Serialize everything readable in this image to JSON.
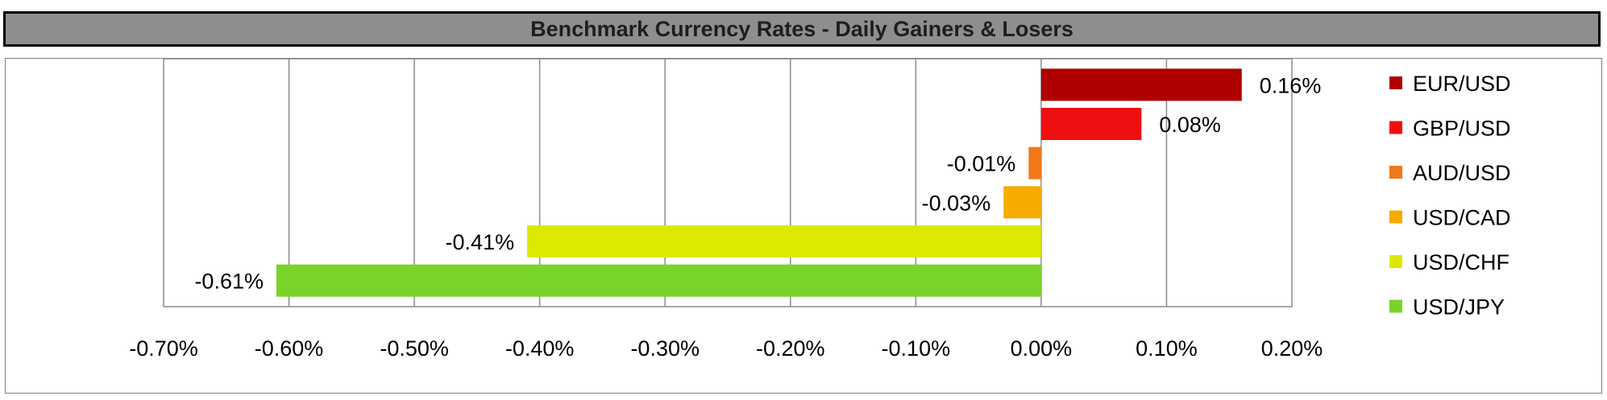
{
  "title": "Benchmark Currency Rates - Daily Gainers & Losers",
  "chart_data": {
    "type": "bar",
    "orientation": "horizontal",
    "title": "Benchmark Currency Rates - Daily Gainers & Losers",
    "xlabel": "",
    "ylabel": "",
    "xlim": [
      -0.7,
      0.2
    ],
    "x_ticks": [
      -0.7,
      -0.6,
      -0.5,
      -0.4,
      -0.3,
      -0.2,
      -0.1,
      0.0,
      0.1,
      0.2
    ],
    "x_tick_labels": [
      "-0.70%",
      "-0.60%",
      "-0.50%",
      "-0.40%",
      "-0.30%",
      "-0.20%",
      "-0.10%",
      "0.00%",
      "0.10%",
      "0.20%"
    ],
    "grid": "vertical",
    "legend_position": "right",
    "series": [
      {
        "name": "EUR/USD",
        "value": 0.16,
        "label": "0.16%",
        "color": "#b00000"
      },
      {
        "name": "GBP/USD",
        "value": 0.08,
        "label": "0.08%",
        "color": "#ee1010"
      },
      {
        "name": "AUD/USD",
        "value": -0.01,
        "label": "-0.01%",
        "color": "#f07818"
      },
      {
        "name": "USD/CAD",
        "value": -0.03,
        "label": "-0.03%",
        "color": "#f7ab00"
      },
      {
        "name": "USD/CHF",
        "value": -0.41,
        "label": "-0.41%",
        "color": "#dcea00"
      },
      {
        "name": "USD/JPY",
        "value": -0.61,
        "label": "-0.61%",
        "color": "#78d428"
      }
    ]
  }
}
